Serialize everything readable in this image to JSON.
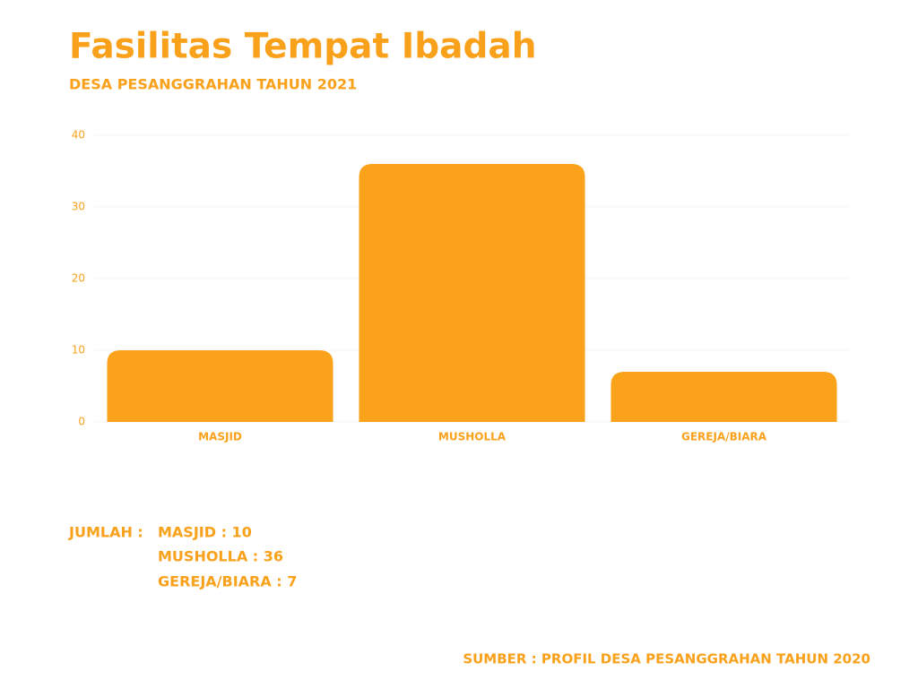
{
  "chart_data": {
    "type": "bar",
    "title": "Fasilitas Tempat Ibadah",
    "subtitle": "DESA PESANGGRAHAN TAHUN 2021",
    "categories": [
      "MASJID",
      "MUSHOLLA",
      "GEREJA/BIARA"
    ],
    "values": [
      10,
      36,
      7
    ],
    "color": "#FBA21B",
    "ylim": [
      0,
      40
    ],
    "yticks": [
      0,
      10,
      20,
      30,
      40
    ],
    "grid": true
  },
  "summary": {
    "label": "JUMLAH :",
    "items": [
      "MASJID : 10",
      "MUSHOLLA : 36",
      "GEREJA/BIARA : 7"
    ]
  },
  "source": "SUMBER : PROFIL DESA PESANGGRAHAN TAHUN 2020"
}
